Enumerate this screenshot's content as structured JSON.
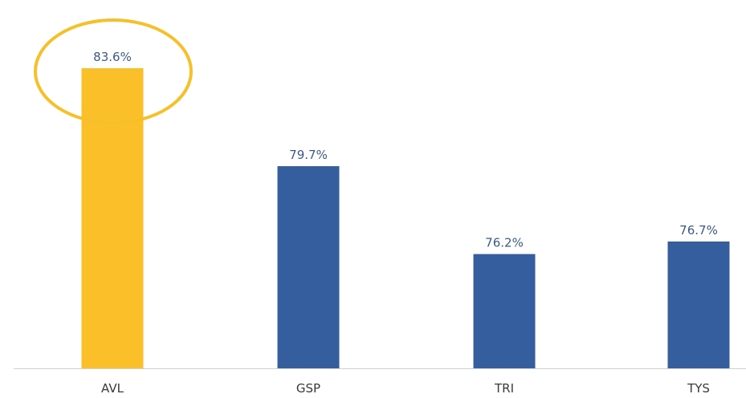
{
  "chart_data": {
    "type": "bar",
    "categories": [
      "AVL",
      "GSP",
      "TRI",
      "TYS"
    ],
    "values": [
      83.6,
      79.7,
      76.2,
      76.7
    ],
    "value_labels": [
      "83.6%",
      "79.7%",
      "76.2%",
      "76.7%"
    ],
    "unit": "%",
    "ylim": [
      71.65,
      84.4
    ],
    "grid": false,
    "legend": "none",
    "highlight_index": 0,
    "colors": {
      "bar": "#345e9e",
      "highlight_bar": "#fbbf2a",
      "highlight_ring": "#f6c02a",
      "axis": "#d0d0d0",
      "value_label": "#3a5a8c",
      "category_label": "#3a3a3a"
    }
  }
}
